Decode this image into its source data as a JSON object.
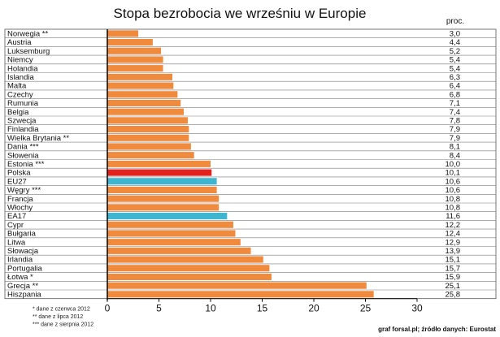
{
  "chart_data": {
    "type": "bar",
    "orientation": "horizontal",
    "title": "Stopa bezrobocia we wrześniu w Europie",
    "value_header": "proc.",
    "categories": [
      "Norwegia **",
      "Austria",
      "Luksemburg",
      "Niemcy",
      "Holandia",
      "Islandia",
      "Malta",
      "Czechy",
      "Rumunia",
      "Belgia",
      "Szwecja",
      "Finlandia",
      "Wielka Brytania **",
      "Dania ***",
      "Słowenia",
      "Estonia ***",
      "Polska",
      "EU27",
      "Węgry ***",
      "Francja",
      "Włochy",
      "EA17",
      "Cypr",
      "Bułgaria",
      "Litwa",
      "Słowacja",
      "Irlandia",
      "Portugalia",
      "Łotwa *",
      "Grecja **",
      "Hiszpania"
    ],
    "values": [
      3.0,
      4.4,
      5.2,
      5.4,
      5.4,
      6.3,
      6.4,
      6.8,
      7.1,
      7.4,
      7.8,
      7.9,
      7.9,
      8.1,
      8.4,
      10.0,
      10.1,
      10.6,
      10.6,
      10.8,
      10.8,
      11.6,
      12.2,
      12.4,
      12.9,
      13.9,
      15.1,
      15.7,
      15.9,
      25.1,
      25.8
    ],
    "value_labels": [
      "3,0",
      "4,4",
      "5,2",
      "5,4",
      "5,4",
      "6,3",
      "6,4",
      "6,8",
      "7,1",
      "7,4",
      "7,8",
      "7,9",
      "7,9",
      "8,1",
      "8,4",
      "10,0",
      "10,1",
      "10,6",
      "10,6",
      "10,8",
      "10,8",
      "11,6",
      "12,2",
      "12,4",
      "12,9",
      "13,9",
      "15,1",
      "15,7",
      "15,9",
      "25,1",
      "25,8"
    ],
    "bar_colors": {
      "default": "#f08a3c",
      "Polska": "#e3211c",
      "EU27": "#3eb6d2",
      "EA17": "#3eb6d2"
    },
    "xlim": [
      0,
      30
    ],
    "x_ticks": [
      0,
      5,
      10,
      15,
      20,
      25,
      30
    ],
    "grid": "horizontal-rows",
    "footnotes": [
      "* dane z czerwca 2012",
      "** dane z lipca 2012",
      "*** dane z sierpnia 2012"
    ],
    "source": "graf forsal.pl; źródło danych: Eurostat"
  }
}
